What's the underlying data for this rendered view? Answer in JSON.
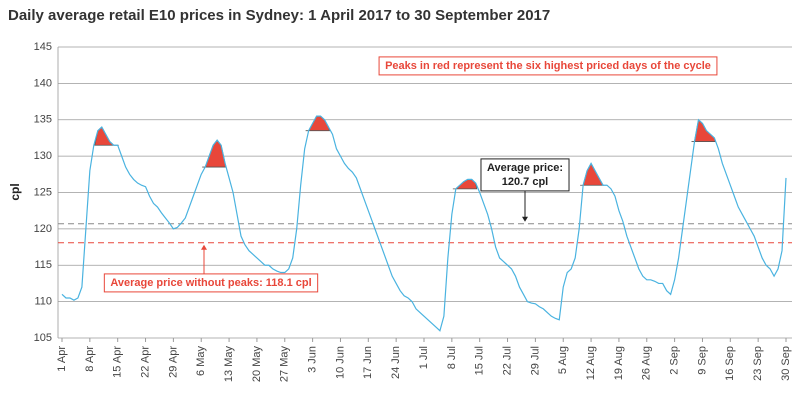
{
  "chart_data": {
    "type": "line",
    "title": "Daily average retail E10 prices in Sydney: 1 April 2017 to 30 September 2017",
    "y_label": "cpl",
    "categories": [
      "1 Apr",
      null,
      null,
      null,
      null,
      null,
      null,
      "8 Apr",
      null,
      null,
      null,
      null,
      null,
      null,
      "15 Apr",
      null,
      null,
      null,
      null,
      null,
      null,
      "22 Apr",
      null,
      null,
      null,
      null,
      null,
      null,
      "29 Apr",
      null,
      null,
      null,
      null,
      null,
      null,
      "6 May",
      null,
      null,
      null,
      null,
      null,
      null,
      "13 May",
      null,
      null,
      null,
      null,
      null,
      null,
      "20 May",
      null,
      null,
      null,
      null,
      null,
      null,
      "27 May",
      null,
      null,
      null,
      null,
      null,
      null,
      "3 Jun",
      null,
      null,
      null,
      null,
      null,
      null,
      "10 Jun",
      null,
      null,
      null,
      null,
      null,
      null,
      "17 Jun",
      null,
      null,
      null,
      null,
      null,
      null,
      "24 Jun",
      null,
      null,
      null,
      null,
      null,
      null,
      "1 Jul",
      null,
      null,
      null,
      null,
      null,
      null,
      "8 Jul",
      null,
      null,
      null,
      null,
      null,
      null,
      "15 Jul",
      null,
      null,
      null,
      null,
      null,
      null,
      "22 Jul",
      null,
      null,
      null,
      null,
      null,
      null,
      "29 Jul",
      null,
      null,
      null,
      null,
      null,
      null,
      "5 Aug",
      null,
      null,
      null,
      null,
      null,
      null,
      "12 Aug",
      null,
      null,
      null,
      null,
      null,
      null,
      "19 Aug",
      null,
      null,
      null,
      null,
      null,
      null,
      "26 Aug",
      null,
      null,
      null,
      null,
      null,
      null,
      "2 Sep",
      null,
      null,
      null,
      null,
      null,
      null,
      "9 Sep",
      null,
      null,
      null,
      null,
      null,
      null,
      "16 Sep",
      null,
      null,
      null,
      null,
      null,
      null,
      "23 Sep",
      null,
      null,
      null,
      null,
      null,
      null,
      "30 Sep"
    ],
    "values": [
      111,
      110.5,
      110.5,
      110.2,
      110.5,
      112,
      120,
      128,
      131.5,
      133.5,
      134,
      133,
      132,
      131.5,
      131.5,
      130,
      128.5,
      127.5,
      126.8,
      126.3,
      126,
      125.8,
      124.5,
      123.5,
      123,
      122.2,
      121.5,
      120.8,
      120,
      120.2,
      120.8,
      121.5,
      123,
      124.5,
      126,
      127.5,
      128.5,
      130,
      131.5,
      132.2,
      131.5,
      129,
      127,
      125,
      122,
      119,
      117.8,
      117,
      116.5,
      116,
      115.5,
      115,
      115,
      114.5,
      114.2,
      114,
      114,
      114.5,
      116,
      120,
      126,
      131,
      133.5,
      134.5,
      135.5,
      135.5,
      135,
      134,
      133,
      131,
      130,
      129,
      128.3,
      127.8,
      127,
      125.5,
      124,
      122.5,
      121,
      119.5,
      118,
      116.5,
      115,
      113.5,
      112.5,
      111.5,
      110.8,
      110.5,
      110,
      109,
      108.5,
      108,
      107.5,
      107,
      106.5,
      106,
      108,
      116,
      122,
      125.5,
      126,
      126.5,
      126.8,
      126.8,
      126.3,
      125,
      123.5,
      122,
      120,
      117.5,
      116,
      115.5,
      115,
      114.5,
      113.5,
      112,
      111,
      110,
      109.8,
      109.7,
      109.3,
      109,
      108.5,
      108,
      107.7,
      107.5,
      112,
      114,
      114.5,
      116,
      120,
      126,
      128,
      129,
      128,
      127,
      126,
      126,
      125.5,
      124.5,
      122.5,
      121,
      119,
      117.5,
      116,
      114.5,
      113.5,
      113,
      113,
      112.8,
      112.5,
      112.5,
      111.5,
      111,
      113,
      116,
      120,
      124,
      128,
      132,
      135,
      134.5,
      133.5,
      133,
      132.5,
      131,
      129,
      127.5,
      126,
      124.5,
      123,
      122,
      121,
      120,
      119,
      117.5,
      116,
      115,
      114.5,
      113.5,
      114.5,
      117,
      127
    ],
    "color": "#4ab3e0",
    "peaks": {
      "color": "#e8473a",
      "values": [
        null,
        null,
        null,
        null,
        null,
        null,
        null,
        null,
        null,
        133.5,
        134,
        133,
        132,
        131.5,
        131.5,
        null,
        null,
        null,
        null,
        null,
        null,
        null,
        null,
        null,
        null,
        null,
        null,
        null,
        null,
        null,
        null,
        null,
        null,
        null,
        null,
        null,
        128.5,
        130,
        131.5,
        132.2,
        131.5,
        129,
        null,
        null,
        null,
        null,
        null,
        null,
        null,
        null,
        null,
        null,
        null,
        null,
        null,
        null,
        null,
        null,
        null,
        null,
        null,
        null,
        133.5,
        134.5,
        135.5,
        135.5,
        135,
        134,
        null,
        null,
        null,
        null,
        null,
        null,
        null,
        null,
        null,
        null,
        null,
        null,
        null,
        null,
        null,
        null,
        null,
        null,
        null,
        null,
        null,
        null,
        null,
        null,
        null,
        null,
        null,
        null,
        null,
        null,
        null,
        125.5,
        126,
        126.5,
        126.8,
        126.8,
        126.3,
        null,
        null,
        null,
        null,
        null,
        null,
        null,
        null,
        null,
        null,
        null,
        null,
        null,
        null,
        null,
        null,
        null,
        null,
        null,
        null,
        null,
        null,
        null,
        null,
        null,
        null,
        126,
        128,
        129,
        128,
        127,
        126,
        null,
        null,
        null,
        null,
        null,
        null,
        null,
        null,
        null,
        null,
        null,
        null,
        null,
        null,
        null,
        null,
        null,
        null,
        null,
        null,
        null,
        null,
        132,
        135,
        134.5,
        133.5,
        133,
        132.5,
        null,
        null,
        null,
        null,
        null,
        null,
        null,
        null,
        null,
        null,
        null,
        null,
        null,
        null,
        null,
        null,
        null,
        null
      ]
    },
    "ylim": [
      105,
      145
    ],
    "yticks": [
      105,
      110,
      115,
      120,
      125,
      130,
      135,
      140,
      145
    ],
    "grid": true,
    "note": "Peaks in red represent the six highest priced days of the cycle",
    "reference_lines": [
      {
        "value": 120.7,
        "color": "#888888",
        "label": [
          "Average price:",
          "120.7 cpl"
        ]
      },
      {
        "value": 118.1,
        "color": "#e8473a",
        "label": [
          "Average price without peaks: 118.1 cpl"
        ]
      }
    ]
  }
}
